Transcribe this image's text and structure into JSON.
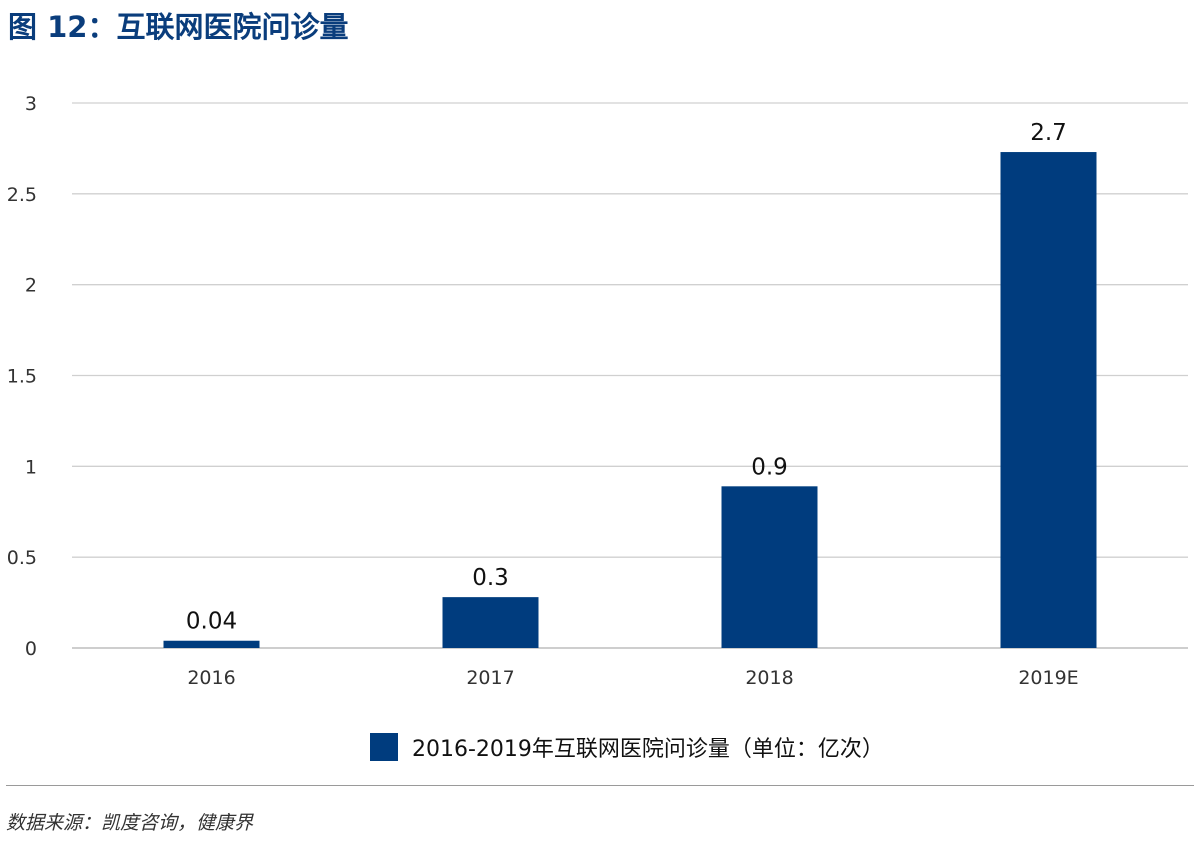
{
  "title": "图 12：互联网医院问诊量",
  "colors": {
    "bar": "#003c7e",
    "title": "#0a3d7c",
    "grid": "#d0d0d0",
    "axis": "#bdbdbd"
  },
  "source": "数据来源：凯度咨询，健康界",
  "chart_data": {
    "type": "bar",
    "title": "",
    "xlabel": "",
    "ylabel": "",
    "categories": [
      "2016",
      "2017",
      "2018",
      "2019E"
    ],
    "series": [
      {
        "name": "2016-2019年互联网医院问诊量（单位：亿次）",
        "values": [
          0.04,
          0.28,
          0.89,
          2.73
        ],
        "data_labels": [
          "0.04",
          "0.3",
          "0.9",
          "2.7"
        ]
      }
    ],
    "ylim": [
      0,
      3
    ],
    "yticks": [
      0,
      0.5,
      1,
      1.5,
      2,
      2.5,
      3
    ],
    "ytick_labels": [
      "0",
      "0.5",
      "1",
      "1.5",
      "2",
      "2.5",
      "3"
    ],
    "grid": true,
    "legend_position": "bottom"
  }
}
